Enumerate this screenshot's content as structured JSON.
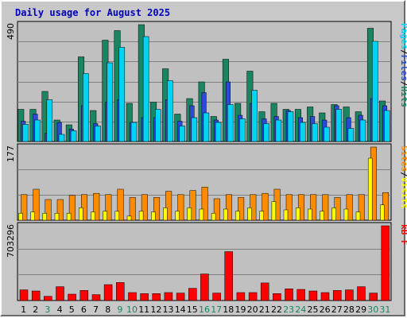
{
  "chart_data": [
    {
      "type": "bar",
      "title": "Daily usage for August 2025",
      "panel": "pages-files-hits",
      "ymax_label": "490",
      "ylim": [
        0,
        490
      ],
      "categories": [
        "1",
        "2",
        "3",
        "4",
        "5",
        "6",
        "7",
        "8",
        "9",
        "10",
        "11",
        "12",
        "13",
        "14",
        "15",
        "16",
        "17",
        "18",
        "19",
        "20",
        "21",
        "22",
        "23",
        "24",
        "25",
        "26",
        "27",
        "28",
        "29",
        "30",
        "31"
      ],
      "series": [
        {
          "name": "Hits",
          "color": "#1b8462",
          "values": [
            135,
            135,
            210,
            90,
            70,
            355,
            130,
            425,
            465,
            160,
            490,
            165,
            305,
            115,
            180,
            250,
            105,
            345,
            160,
            295,
            125,
            160,
            135,
            135,
            145,
            120,
            155,
            145,
            125,
            475,
            170
          ]
        },
        {
          "name": "Files",
          "color": "#2a4bd8",
          "values": [
            85,
            115,
            35,
            80,
            52,
            150,
            75,
            165,
            175,
            80,
            100,
            100,
            175,
            85,
            150,
            205,
            90,
            250,
            110,
            160,
            95,
            105,
            130,
            100,
            105,
            90,
            150,
            100,
            110,
            180,
            150
          ]
        },
        {
          "name": "Pages",
          "color": "#00d4f4",
          "values": [
            72,
            90,
            175,
            30,
            45,
            285,
            65,
            330,
            395,
            80,
            440,
            135,
            255,
            65,
            100,
            120,
            80,
            155,
            95,
            215,
            75,
            90,
            125,
            80,
            75,
            60,
            135,
            55,
            90,
            420,
            130
          ]
        }
      ],
      "weekend_days": [
        3,
        9,
        10,
        16,
        17,
        23,
        24,
        30,
        31
      ]
    },
    {
      "type": "bar",
      "panel": "sites-visits",
      "ymax_label": "177",
      "ylim": [
        0,
        177
      ],
      "series": [
        {
          "name": "Visits",
          "color": "#ff8c00",
          "values": [
            62,
            75,
            50,
            50,
            60,
            62,
            65,
            62,
            75,
            55,
            62,
            55,
            70,
            62,
            72,
            80,
            52,
            62,
            55,
            62,
            65,
            75,
            62,
            62,
            62,
            62,
            55,
            62,
            62,
            177,
            67
          ]
        },
        {
          "name": "Sites",
          "color": "#ffff00",
          "values": [
            17,
            20,
            17,
            17,
            17,
            30,
            20,
            22,
            22,
            10,
            22,
            20,
            30,
            22,
            30,
            27,
            17,
            27,
            22,
            30,
            22,
            45,
            25,
            30,
            27,
            22,
            30,
            27,
            20,
            150,
            37
          ]
        }
      ]
    },
    {
      "type": "bar",
      "panel": "kbytes",
      "ymax_label": "703296",
      "ylim": [
        0,
        703296
      ],
      "series": [
        {
          "name": "kB F",
          "color": "#ff0000",
          "values": [
            100000,
            90000,
            40000,
            130000,
            60000,
            95000,
            55000,
            150000,
            170000,
            75000,
            65000,
            65000,
            75000,
            70000,
            115000,
            250000,
            70000,
            460000,
            75000,
            75000,
            165000,
            65000,
            110000,
            105000,
            90000,
            75000,
            95000,
            100000,
            130000,
            70000,
            703296
          ]
        }
      ]
    }
  ],
  "axis_labels": {
    "top": [
      "Pages",
      "Files",
      "Hits"
    ],
    "mid": [
      "Sites",
      "Visits"
    ],
    "bottom": [
      "kB F"
    ],
    "separator": "/"
  }
}
